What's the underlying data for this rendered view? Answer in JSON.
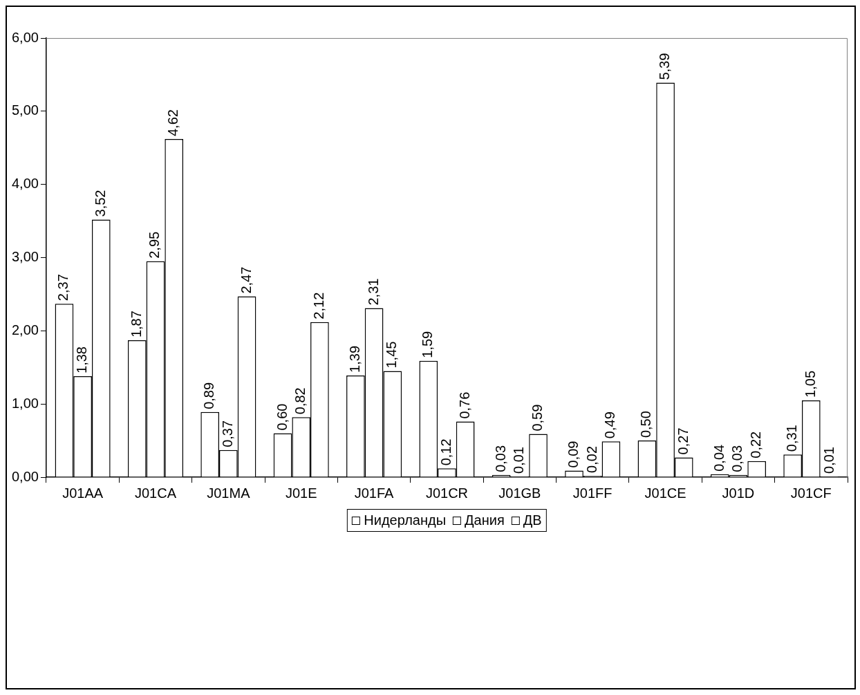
{
  "chart_data": {
    "type": "bar",
    "categories": [
      "J01AA",
      "J01CA",
      "J01MA",
      "J01E",
      "J01FA",
      "J01CR",
      "J01GB",
      "J01FF",
      "J01CE",
      "J01D",
      "J01CF"
    ],
    "series": [
      {
        "name": "Нидерланды",
        "color": "#ffffff",
        "values": [
          2.37,
          1.87,
          0.89,
          0.6,
          1.39,
          1.59,
          0.03,
          0.09,
          0.5,
          0.04,
          0.31
        ],
        "value_labels": [
          "2,37",
          "1,87",
          "0,89",
          "0,60",
          "1,39",
          "1,59",
          "0,03",
          "0,09",
          "0,50",
          "0,04",
          "0,31"
        ]
      },
      {
        "name": "Дания",
        "color": "#ffffff",
        "values": [
          1.38,
          2.95,
          0.37,
          0.82,
          2.31,
          0.12,
          0.01,
          0.02,
          5.39,
          0.03,
          1.05
        ],
        "value_labels": [
          "1,38",
          "2,95",
          "0,37",
          "0,82",
          "2,31",
          "0,12",
          "0,01",
          "0,02",
          "5,39",
          "0,03",
          "1,05"
        ]
      },
      {
        "name": "ДВ",
        "color": "#ffffff",
        "values": [
          3.52,
          4.62,
          2.47,
          2.12,
          1.45,
          0.76,
          0.59,
          0.49,
          0.27,
          0.22,
          0.01
        ],
        "value_labels": [
          "3,52",
          "4,62",
          "2,47",
          "2,12",
          "1,45",
          "0,76",
          "0,59",
          "0,49",
          "0,27",
          "0,22",
          "0,01"
        ]
      }
    ],
    "ylim": [
      0,
      6
    ],
    "yticks": [
      {
        "value": 0,
        "label": "0,00"
      },
      {
        "value": 1,
        "label": "1,00"
      },
      {
        "value": 2,
        "label": "2,00"
      },
      {
        "value": 3,
        "label": "3,00"
      },
      {
        "value": 4,
        "label": "4,00"
      },
      {
        "value": 5,
        "label": "5,00"
      },
      {
        "value": 6,
        "label": "6,00"
      }
    ],
    "grid": false,
    "legend": "bottom"
  }
}
